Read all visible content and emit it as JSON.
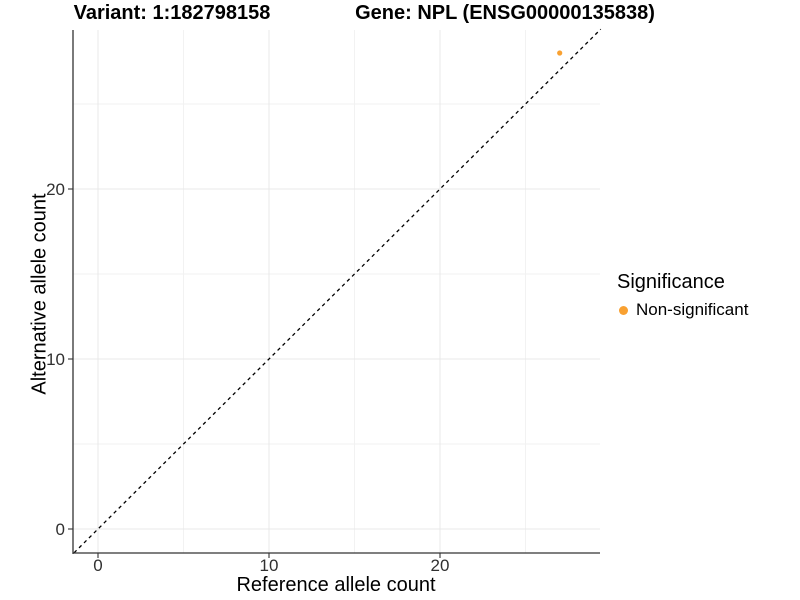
{
  "titles": {
    "variant": "Variant: 1:182798158",
    "gene": "Gene: NPL (ENSG00000135838)"
  },
  "chart_data": {
    "type": "scatter",
    "title_left": "Variant: 1:182798158",
    "title_right": "Gene: NPL (ENSG00000135838)",
    "xlabel": "Reference allele count",
    "ylabel": "Alternative allele count",
    "xlim": [
      -1.45,
      29.4
    ],
    "ylim": [
      -1.4,
      29.4
    ],
    "x_ticks": [
      0,
      10,
      20
    ],
    "y_ticks": [
      0,
      10,
      20
    ],
    "x_minor_ticks": [
      5,
      15,
      25
    ],
    "y_minor_ticks": [
      5,
      15,
      25
    ],
    "grid": "on",
    "identity_line": {
      "slope": 1,
      "intercept": 0,
      "style": "dashed"
    },
    "points": [
      {
        "x": 27,
        "y": 28,
        "series": "Non-significant"
      }
    ],
    "legend": {
      "position": "right",
      "title": "Significance",
      "entries": [
        {
          "label": "Non-significant",
          "color": "#F9A131",
          "marker": "circle"
        }
      ]
    }
  },
  "colors": {
    "point": "#F9A131",
    "grid_major": "#E8E8E8",
    "grid_minor": "#F2F2F2",
    "axis_line": "#333333",
    "tick_text": "#303030",
    "identity_line": "#000000",
    "background": "#FFFFFF"
  }
}
